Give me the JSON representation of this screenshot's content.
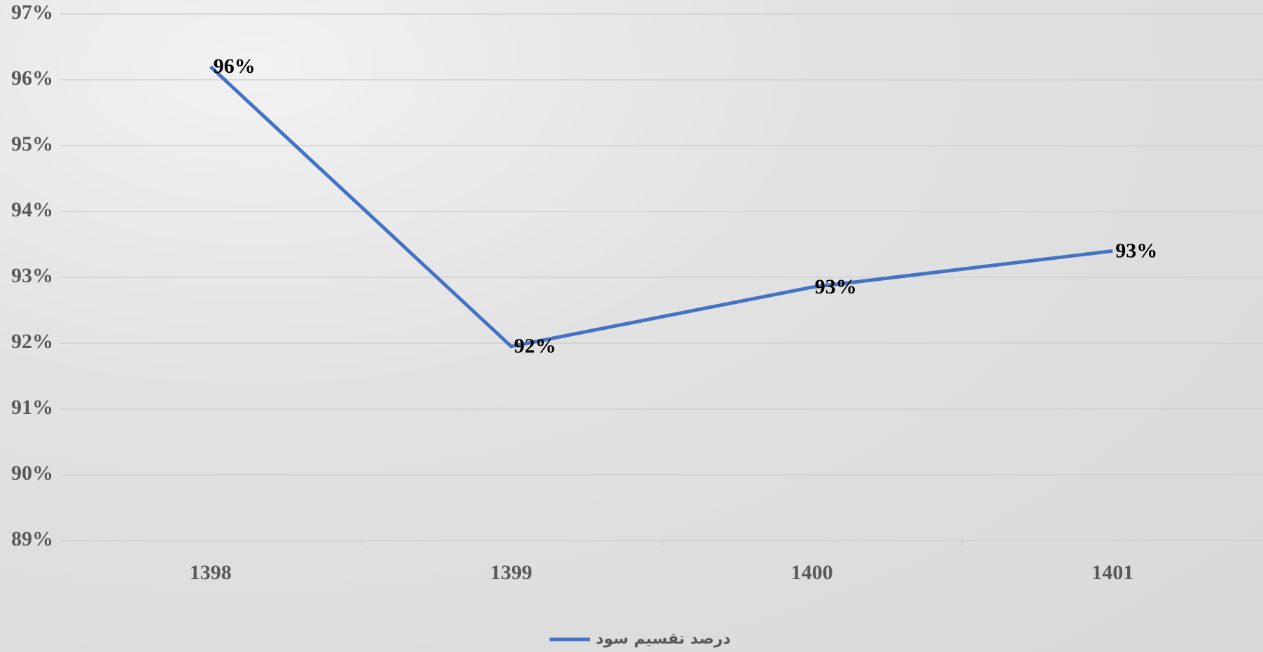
{
  "chart_data": {
    "type": "line",
    "categories": [
      "1398",
      "1399",
      "1400",
      "1401"
    ],
    "series": [
      {
        "name": "درصد تقسیم سود",
        "color": "#4472c4",
        "values": [
          96.2,
          91.95,
          92.85,
          93.4
        ],
        "value_labels": [
          "96%",
          "92%",
          "93%",
          "93%"
        ]
      }
    ],
    "ylim": [
      89,
      97
    ],
    "yticks": [
      {
        "value": 89,
        "label": "89%"
      },
      {
        "value": 90,
        "label": "90%"
      },
      {
        "value": 91,
        "label": "91%"
      },
      {
        "value": 92,
        "label": "92%"
      },
      {
        "value": 93,
        "label": "93%"
      },
      {
        "value": 94,
        "label": "94%"
      },
      {
        "value": 95,
        "label": "95%"
      },
      {
        "value": 96,
        "label": "96%"
      },
      {
        "value": 97,
        "label": "97%"
      }
    ],
    "grid": true,
    "legend": "bottom"
  }
}
